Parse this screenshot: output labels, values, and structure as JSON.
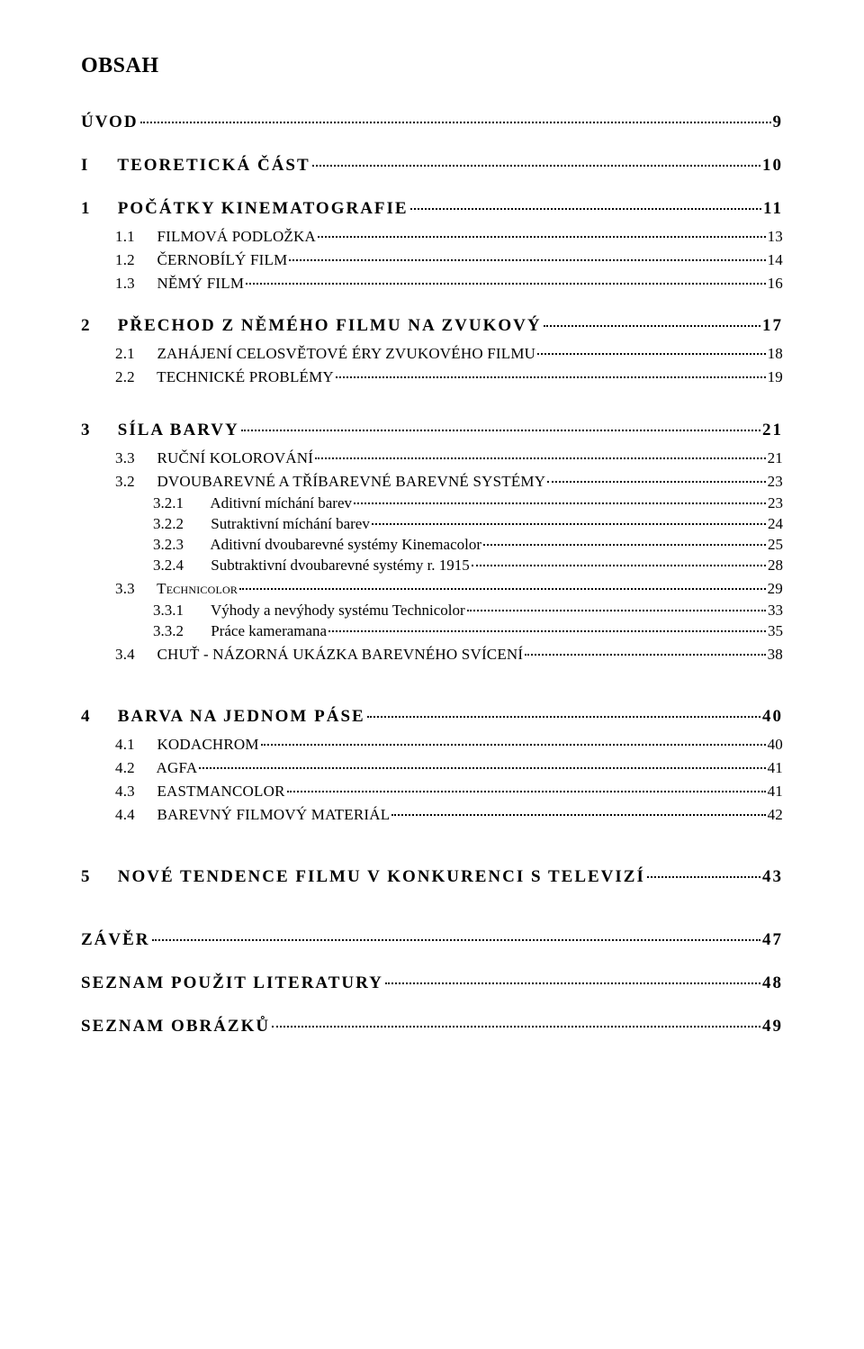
{
  "title": "OBSAH",
  "entries": [
    {
      "cls": "lvl-bold-h2-wide gap-lg",
      "num": "",
      "label": "ÚVOD",
      "page": "9"
    },
    {
      "cls": "lvl-bold-h2-wide",
      "num": "I",
      "label": "TEORETICKÁ ČÁST",
      "page": "10",
      "numpad": true
    },
    {
      "cls": "lvl-bold-h2",
      "num": "1",
      "label": "POČÁTKY  KINEMATOGRAFIE",
      "page": "11"
    },
    {
      "cls": "lvl-h3",
      "num": "1.1",
      "label": "FILMOVÁ PODLOŽKA",
      "page": "13"
    },
    {
      "cls": "lvl-h3",
      "num": "1.2",
      "label": "ČERNOBÍLÝ FILM",
      "page": "14"
    },
    {
      "cls": "lvl-h3",
      "num": "1.3",
      "label": "NĚMÝ FILM",
      "page": "16"
    },
    {
      "cls": "lvl-bold-h2",
      "num": "2",
      "label": "PŘECHOD  Z  NĚMÉHO  FILMU  NA  ZVUKOVÝ",
      "page": "17"
    },
    {
      "cls": "lvl-h3",
      "num": "2.1",
      "label": "ZAHÁJENÍ CELOSVĚTOVÉ ÉRY ZVUKOVÉHO FILMU",
      "page": "18"
    },
    {
      "cls": "lvl-h3",
      "num": "2.2",
      "label": "TECHNICKÉ PROBLÉMY",
      "page": "19"
    },
    {
      "cls": "lvl-bold-h2 gap-lg",
      "num": "3",
      "label": "SÍLA  BARVY",
      "page": "21"
    },
    {
      "cls": "lvl-h3",
      "num": "3.3",
      "label": "RUČNÍ KOLOROVÁNÍ",
      "page": "21"
    },
    {
      "cls": "lvl-h3",
      "num": "3.2",
      "label": "DVOUBAREVNÉ  A  TŘÍBAREVNÉ BAREVNÉ SYSTÉMY",
      "page": "23"
    },
    {
      "cls": "lvl-h4",
      "num": "3.2.1",
      "label": "Aditivní míchání barev",
      "page": "23"
    },
    {
      "cls": "lvl-h4",
      "num": "3.2.2",
      "label": "Sutraktivní míchání barev",
      "page": "24"
    },
    {
      "cls": "lvl-h4",
      "num": "3.2.3",
      "label": "Aditivní dvoubarevné systémy Kinemacolor",
      "page": "25"
    },
    {
      "cls": "lvl-h4",
      "num": "3.2.4",
      "label": "Subtraktivní dvoubarevné systémy r. 1915",
      "page": "28"
    },
    {
      "cls": "lvl-h3-sc",
      "num": "3.3",
      "label": "Technicolor",
      "page": "29"
    },
    {
      "cls": "lvl-h4",
      "num": "3.3.1",
      "label": "Výhody a nevýhody systému Technicolor",
      "page": "33"
    },
    {
      "cls": "lvl-h4",
      "num": "3.3.2",
      "label": "Práce kameramana",
      "page": "35"
    },
    {
      "cls": "lvl-h3",
      "num": "3.4",
      "label": "CHUŤ - NÁZORNÁ UKÁZKA BAREVNÉHO SVÍCENÍ",
      "page": "38"
    },
    {
      "cls": "lvl-bold-h2 gap-xl",
      "num": "4",
      "label": "BARVA  NA  JEDNOM  PÁSE",
      "page": "40"
    },
    {
      "cls": "lvl-h3",
      "num": "4.1",
      "label": "KODACHROM",
      "page": "40"
    },
    {
      "cls": "lvl-h3",
      "num": "4.2",
      "label": "AGFA",
      "page": "41"
    },
    {
      "cls": "lvl-h3",
      "num": "4.3",
      "label": "EASTMANCOLOR",
      "page": "41"
    },
    {
      "cls": "lvl-h3",
      "num": "4.4",
      "label": "BAREVNÝ FILMOVÝ MATERIÁL",
      "page": "42"
    },
    {
      "cls": "lvl-bold-h2 gap-xl",
      "num": "5",
      "label": "NOVÉ  TENDENCE  FILMU  V  KONKURENCI  S  TELEVIZÍ",
      "page": "43"
    },
    {
      "cls": "lvl-bold-h2-wide gap-xl",
      "num": "",
      "label": "ZÁVĚR",
      "page": "47"
    },
    {
      "cls": "lvl-bold-h2-wide",
      "num": "",
      "label": "SEZNAM POUŽIT LITERATURY",
      "page": "48"
    },
    {
      "cls": "lvl-bold-h2-wide",
      "num": "",
      "label": "SEZNAM OBRÁZKŮ",
      "page": "49"
    }
  ]
}
